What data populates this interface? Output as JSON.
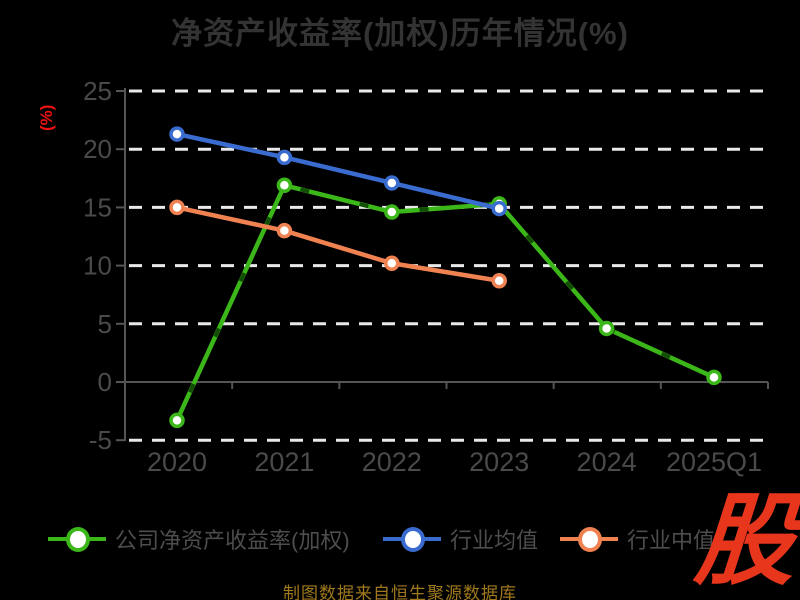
{
  "title": "净资产收益率(加权)历年情况(%)",
  "footer": "制图数据来自恒生聚源数据库",
  "watermark": "股",
  "colors": {
    "title": "#333333",
    "ylabel": "#ee1111",
    "footer": "#a0791d",
    "watermark": "#e8361c",
    "grid": "#e9e9e9",
    "axis": "#555555",
    "tick_text": "#4a4a4a",
    "legend_text": "#4d4d4d",
    "marker_fill": "#ffffff",
    "series_overlay_dash": "#124f04"
  },
  "chart_data": {
    "type": "line",
    "title": "净资产收益率(加权)历年情况(%)",
    "ylabel": "(%)",
    "categories": [
      "2020",
      "2021",
      "2022",
      "2023",
      "2024",
      "2025Q1"
    ],
    "yticks": [
      25,
      20,
      15,
      10,
      5,
      0,
      -5
    ],
    "ylim": [
      -5,
      25
    ],
    "grid": "horizontal-dashed",
    "legend_position": "bottom",
    "series": [
      {
        "name": "公司净资产收益率(加权)",
        "color": "#3cb71a",
        "values": [
          -3.3,
          16.9,
          14.6,
          15.3,
          4.6,
          0.4
        ],
        "overlay_dashed": true
      },
      {
        "name": "行业均值",
        "color": "#3a6cd0",
        "values": [
          21.3,
          19.3,
          17.1,
          14.9,
          null,
          null
        ],
        "overlay_dashed": false
      },
      {
        "name": "行业中值",
        "color": "#f08251",
        "values": [
          15.0,
          13.0,
          10.2,
          8.7,
          null,
          null
        ],
        "overlay_dashed": false
      }
    ]
  }
}
